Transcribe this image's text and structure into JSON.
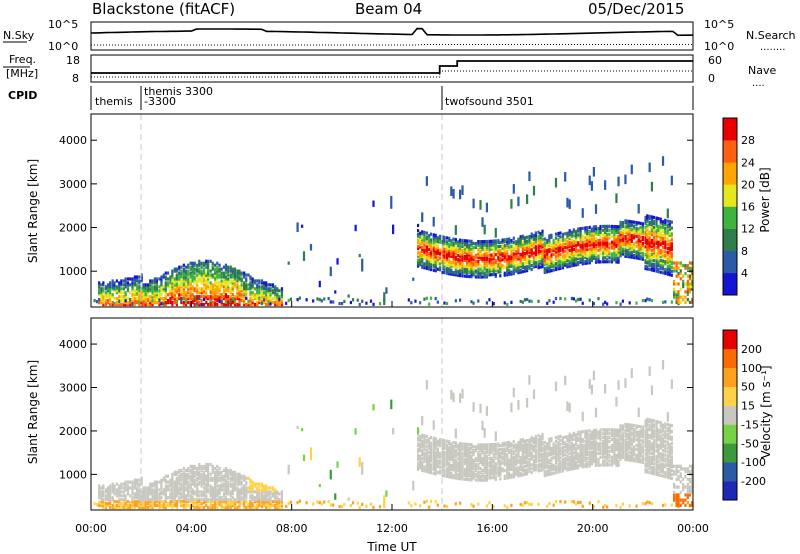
{
  "header": {
    "station": "Blackstone (fitACF)",
    "beam": "Beam 04",
    "date": "05/Dec/2015"
  },
  "nsky_panel": {
    "left_label": "N.Sky",
    "left_ticks": [
      "10^5",
      "10^0"
    ],
    "right_ticks": [
      "10^5",
      "10^0"
    ],
    "right_label": "N.Search",
    "right_dots": "........"
  },
  "freq_panel": {
    "label_lines": [
      "Freq.",
      "[MHz]"
    ],
    "left_ticks": [
      "18",
      "8"
    ],
    "right_ticks": [
      "60",
      "0"
    ],
    "right_label": "Nave",
    "right_dots": "....",
    "cpid_label": "CPID"
  },
  "cpid_annotations": [
    {
      "text": "themis",
      "time": 0.3
    },
    {
      "text": "themis 3300",
      "time": 2.15
    },
    {
      "text": "-3300",
      "time": 2.15
    },
    {
      "text": "twofsound 3501",
      "time": 14.15
    }
  ],
  "chart_data": [
    {
      "type": "heatmap",
      "title": "Power",
      "xlabel": "",
      "ylabel": "Slant Range [km]",
      "ylim": [
        180,
        4600
      ],
      "y_ticks": [
        "1000",
        "2000",
        "3000",
        "4000"
      ],
      "colorbar_label": "Power [dB]",
      "colorbar_ticks": [
        "4",
        "8",
        "12",
        "16",
        "20",
        "24",
        "28"
      ],
      "colorbar_colors": [
        "#1414d2",
        "#2a5aa8",
        "#2e7d4a",
        "#3fb33f",
        "#e6e61e",
        "#ffa500",
        "#ff6010",
        "#e60000"
      ],
      "features": [
        {
          "name": "morning-near-range",
          "t0": 0.2,
          "t1": 6.5,
          "r_lo": 300,
          "r_hi": 1300,
          "peak_db": 28
        },
        {
          "name": "evening-band",
          "t0": 12.9,
          "t1": 23.2,
          "r_lo": 900,
          "r_hi": 2400,
          "peak_db": 28
        }
      ]
    },
    {
      "type": "heatmap",
      "title": "Velocity",
      "xlabel": "Time UT",
      "ylabel": "Slant Range [km]",
      "ylim": [
        180,
        4600
      ],
      "y_ticks": [
        "1000",
        "2000",
        "3000",
        "4000"
      ],
      "x_ticks": [
        "00:00",
        "04:00",
        "08:00",
        "12:00",
        "16:00",
        "20:00",
        "00:00"
      ],
      "colorbar_label": "Velocity [m s⁻¹]",
      "colorbar_ticks": [
        "200",
        "100",
        "50",
        "15",
        "-15",
        "-50",
        "-100",
        "-200"
      ],
      "colorbar_colors": [
        "#1e28b4",
        "#2a5aa8",
        "#3c9a3c",
        "#78d246",
        "#c8c8c0",
        "#ffd24a",
        "#ffa01e",
        "#ff6a00",
        "#e60000"
      ],
      "features": [
        {
          "name": "ground-scatter-morning",
          "t0": 0.3,
          "t1": 7.6,
          "r_lo": 400,
          "r_hi": 1000,
          "velocity": 0
        },
        {
          "name": "ground-scatter-evening",
          "t0": 13.0,
          "t1": 23.2,
          "r_lo": 1000,
          "r_hi": 2300,
          "velocity": 0
        }
      ]
    }
  ],
  "colors": {
    "dashed_marker": "#c8c8c8",
    "ground_scatter": "#c8c8c0"
  }
}
